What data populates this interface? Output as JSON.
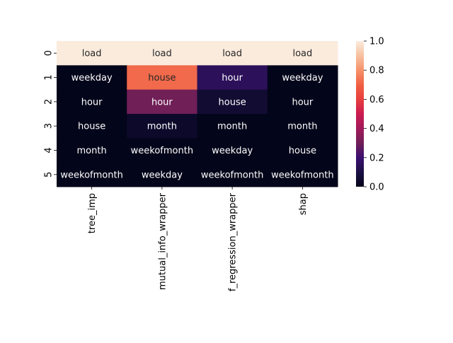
{
  "chart_data": {
    "type": "heatmap",
    "title": "",
    "xlabel": "",
    "ylabel": "",
    "x_categories": [
      "tree_imp",
      "mutual_info_wrapper",
      "f_regression_wrapper",
      "shap"
    ],
    "y_categories": [
      "0",
      "1",
      "2",
      "3",
      "4",
      "5"
    ],
    "values": [
      [
        1.0,
        1.0,
        1.0,
        1.0
      ],
      [
        0.0,
        0.72,
        0.15,
        0.0
      ],
      [
        0.0,
        0.3,
        0.06,
        0.0
      ],
      [
        0.0,
        0.04,
        0.0,
        0.0
      ],
      [
        0.0,
        0.0,
        0.0,
        0.0
      ],
      [
        0.0,
        0.0,
        0.0,
        0.0
      ]
    ],
    "annotations": [
      [
        "load",
        "load",
        "load",
        "load"
      ],
      [
        "weekday",
        "house",
        "hour",
        "weekday"
      ],
      [
        "hour",
        "hour",
        "house",
        "hour"
      ],
      [
        "house",
        "month",
        "month",
        "month"
      ],
      [
        "month",
        "weekofmonth",
        "weekday",
        "house"
      ],
      [
        "weekofmonth",
        "weekday",
        "weekofmonth",
        "weekofmonth"
      ]
    ],
    "colorbar": {
      "range": [
        0.0,
        1.0
      ],
      "ticks": [
        "0.0",
        "0.2",
        "0.4",
        "0.6",
        "0.8",
        "1.0"
      ],
      "colormap": "rocket"
    },
    "grid": false,
    "legend": "none"
  }
}
